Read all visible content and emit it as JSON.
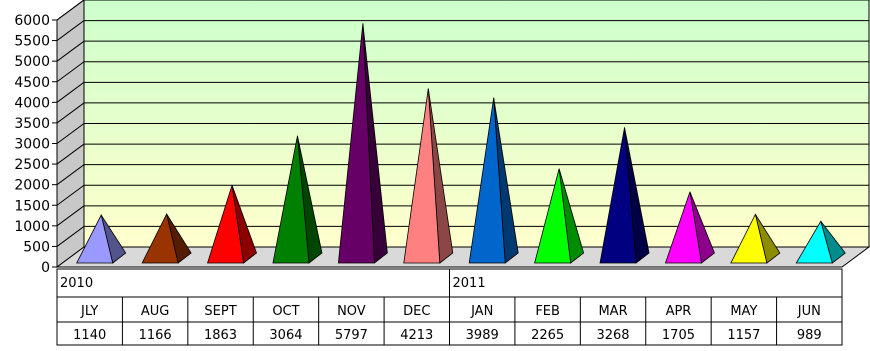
{
  "chart_data": {
    "type": "bar",
    "mark": "pyramid-3d",
    "title": "",
    "xlabel": "",
    "ylabel": "",
    "ylim": [
      0,
      6000
    ],
    "y_ticks": [
      "0",
      "500",
      "1000",
      "1500",
      "2000",
      "2500",
      "3000",
      "3500",
      "4000",
      "4500",
      "5000",
      "5500",
      "6000"
    ],
    "grid": true,
    "plot_background": [
      "#ccffcc",
      "#ffffcc"
    ],
    "year_labels": [
      {
        "text": "2010",
        "start_index": 0
      },
      {
        "text": "2011",
        "start_index": 6
      }
    ],
    "categories": [
      "JLY",
      "AUG",
      "SEPT",
      "OCT",
      "NOV",
      "DEC",
      "JAN",
      "FEB",
      "MAR",
      "APR",
      "MAY",
      "JUN"
    ],
    "values": [
      1140,
      1166,
      1863,
      3064,
      5797,
      4213,
      3989,
      2265,
      3268,
      1705,
      1157,
      989
    ],
    "value_labels": [
      "1140",
      "1166",
      "1863",
      "3064",
      "5797",
      "4213",
      "3989",
      "2265",
      "3268",
      "1705",
      "1157",
      "989"
    ],
    "colors": [
      "#9999ff",
      "#993300",
      "#ff0000",
      "#008000",
      "#660066",
      "#ff8080",
      "#0066cc",
      "#00ff00",
      "#000080",
      "#ff00ff",
      "#ffff00",
      "#00ffff"
    ]
  }
}
